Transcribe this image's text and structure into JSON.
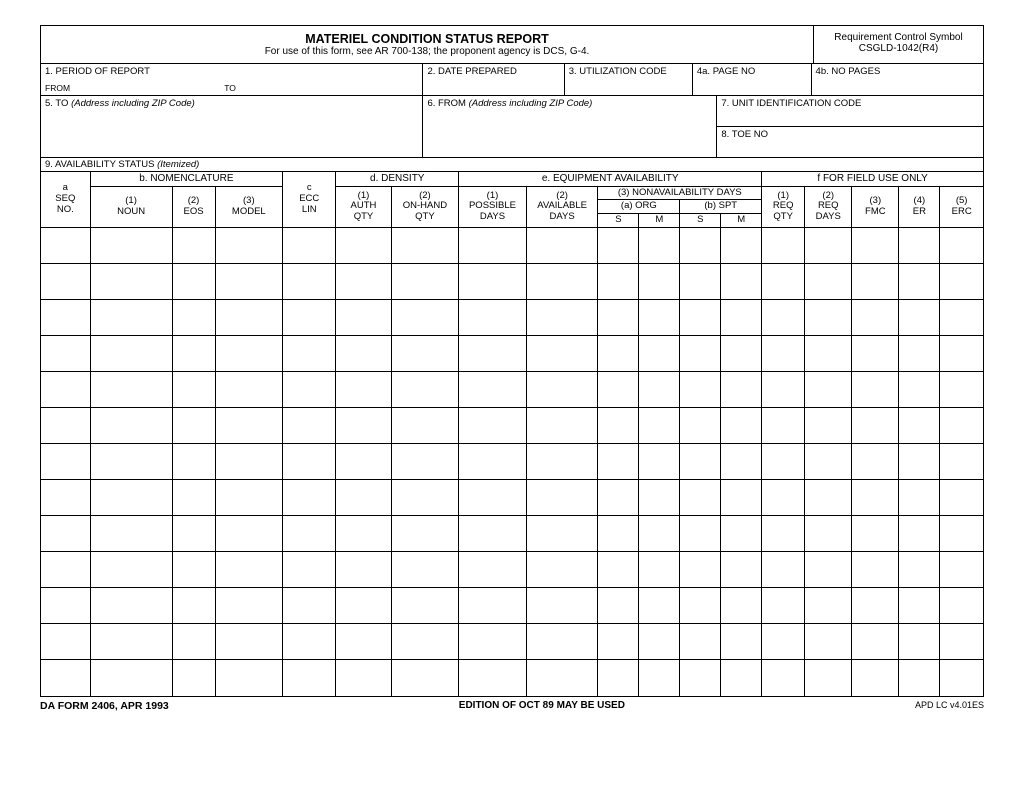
{
  "title": "MATERIEL CONDITION STATUS REPORT",
  "subtitle": "For use of this form, see AR 700-138; the proponent agency is DCS, G-4.",
  "rcs_label": "Requirement Control Symbol",
  "rcs_value": "CSGLD-1042(R4)",
  "boxes": {
    "b1": "1. PERIOD OF REPORT",
    "b1_from": "FROM",
    "b1_to": "TO",
    "b2": "2.  DATE PREPARED",
    "b3": "3.  UTILIZATION CODE",
    "b4a": "4a.  PAGE NO",
    "b4b": "4b.  NO PAGES",
    "b5": "5.  TO",
    "b5_hint": "(Address including ZIP Code)",
    "b6": "6.  FROM",
    "b6_hint": "(Address including ZIP Code)",
    "b7": "7.  UNIT IDENTIFICATION CODE",
    "b8": "8.  TOE NO",
    "b9": "9.  AVAILABILITY STATUS",
    "b9_hint": "(Itemized)"
  },
  "cols": {
    "a": "a\nSEQ\nNO.",
    "b": "b.  NOMENCLATURE",
    "b1": "(1)\nNOUN",
    "b2": "(2)\nEOS",
    "b3": "(3)\nMODEL",
    "c": "c\nECC\nLIN",
    "d": "d.  DENSITY",
    "d1": "(1)\nAUTH\nQTY",
    "d2": "(2)\nON-HAND\nQTY",
    "e": "e.  EQUIPMENT AVAILABILITY",
    "e1": "(1)\nPOSSIBLE\nDAYS",
    "e2": "(2)\nAVAILABLE\nDAYS",
    "e3": "(3) NONAVAILABILITY DAYS",
    "e3a": "(a) ORG",
    "e3b": "(b) SPT",
    "S": "S",
    "M": "M",
    "f": "f  FOR FIELD USE ONLY",
    "f1": "(1)\nREQ\nQTY",
    "f2": "(2)\nREQ\nDAYS",
    "f3": "(3)\nFMC",
    "f4": "(4)\nER",
    "f5": "(5)\nERC"
  },
  "footer": {
    "left": "DA FORM 2406, APR 1993",
    "mid": "EDITION OF OCT 89 MAY BE USED",
    "right": "APD LC v4.01ES"
  },
  "data_row_count": 13,
  "col_widths_pct": [
    4.8,
    8.0,
    4.2,
    6.6,
    5.2,
    5.4,
    6.6,
    6.6,
    7.0,
    4.0,
    4.0,
    4.0,
    4.0,
    4.2,
    4.6,
    4.6,
    4.0,
    4.2
  ]
}
